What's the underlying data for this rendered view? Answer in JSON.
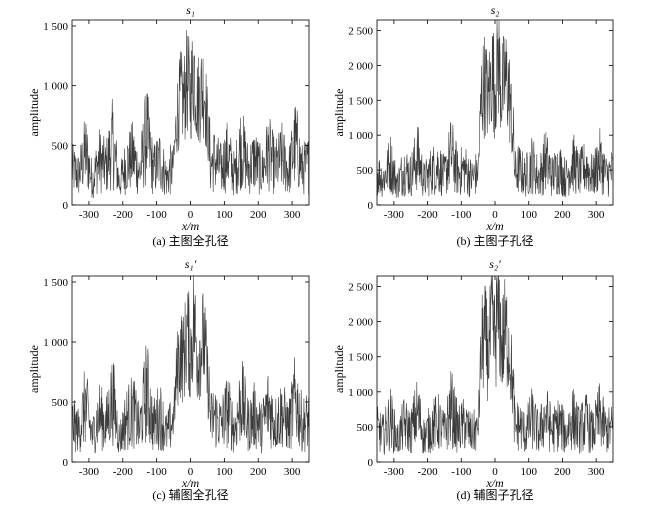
{
  "chart_data": [
    {
      "type": "line",
      "panel": "a",
      "title": "s₁",
      "caption": "(a) 主图全孔径",
      "xlabel": "x/m",
      "ylabel": "amplitude",
      "xlim": [
        -350,
        350
      ],
      "ylim": [
        0,
        1550
      ],
      "xticks": [
        -300,
        -200,
        -100,
        0,
        100,
        200,
        300
      ],
      "yticks": [
        0,
        500,
        1000,
        1500
      ],
      "ytick_labels": [
        "0",
        "500",
        "1 000",
        "1 500"
      ],
      "grid": false,
      "series": [
        {
          "x": [
            -350,
            -330,
            -310,
            -290,
            -270,
            -250,
            -230,
            -210,
            -190,
            -170,
            -150,
            -130,
            -110,
            -90,
            -70,
            -50,
            -40,
            -30,
            -20,
            -10,
            0,
            10,
            20,
            30,
            40,
            50,
            60,
            70,
            90,
            110,
            130,
            150,
            170,
            190,
            210,
            230,
            250,
            270,
            290,
            310,
            330,
            350
          ],
          "y": [
            300,
            250,
            450,
            200,
            380,
            310,
            520,
            180,
            340,
            410,
            260,
            600,
            290,
            380,
            220,
            350,
            740,
            900,
            880,
            1050,
            920,
            1150,
            880,
            940,
            1000,
            680,
            330,
            380,
            300,
            420,
            250,
            510,
            300,
            380,
            270,
            450,
            310,
            400,
            280,
            520,
            300,
            340
          ]
        }
      ]
    },
    {
      "type": "line",
      "panel": "b",
      "title": "s₂",
      "caption": "(b) 主图子孔径",
      "xlabel": "x/m",
      "ylabel": "amplitude",
      "xlim": [
        -350,
        350
      ],
      "ylim": [
        0,
        2650
      ],
      "xticks": [
        -300,
        -200,
        -100,
        0,
        100,
        200,
        300
      ],
      "yticks": [
        0,
        500,
        1000,
        1500,
        2000,
        2500
      ],
      "ytick_labels": [
        "0",
        "500",
        "1 000",
        "1 500",
        "2 000",
        "2 500"
      ],
      "grid": false,
      "series": [
        {
          "x": [
            -350,
            -330,
            -310,
            -290,
            -270,
            -250,
            -230,
            -210,
            -190,
            -170,
            -150,
            -130,
            -110,
            -90,
            -70,
            -50,
            -40,
            -30,
            -20,
            -10,
            0,
            10,
            20,
            30,
            40,
            50,
            60,
            70,
            90,
            110,
            130,
            150,
            170,
            190,
            210,
            230,
            250,
            270,
            290,
            310,
            330,
            350
          ],
          "y": [
            450,
            380,
            600,
            300,
            520,
            420,
            700,
            350,
            480,
            560,
            400,
            750,
            450,
            520,
            380,
            480,
            1600,
            1750,
            1500,
            1900,
            1700,
            2100,
            1600,
            1800,
            1700,
            1200,
            450,
            520,
            400,
            600,
            380,
            650,
            420,
            540,
            380,
            620,
            440,
            560,
            400,
            640,
            420,
            480
          ]
        }
      ]
    },
    {
      "type": "line",
      "panel": "c",
      "title": "s₁′",
      "caption": "(c) 辅图全孔径",
      "xlabel": "x/m",
      "ylabel": "amplitude",
      "xlim": [
        -350,
        350
      ],
      "ylim": [
        0,
        1550
      ],
      "xticks": [
        -300,
        -200,
        -100,
        0,
        100,
        200,
        300
      ],
      "yticks": [
        0,
        500,
        1000,
        1500
      ],
      "ytick_labels": [
        "0",
        "500",
        "1 000",
        "1 500"
      ],
      "grid": false,
      "series": [
        {
          "x": [
            -350,
            -330,
            -310,
            -290,
            -270,
            -250,
            -230,
            -210,
            -190,
            -170,
            -150,
            -130,
            -110,
            -90,
            -70,
            -50,
            -40,
            -30,
            -20,
            -10,
            0,
            10,
            20,
            30,
            40,
            50,
            60,
            70,
            90,
            110,
            130,
            150,
            170,
            190,
            210,
            230,
            250,
            270,
            290,
            310,
            330,
            350
          ],
          "y": [
            320,
            260,
            480,
            210,
            400,
            300,
            540,
            190,
            360,
            430,
            270,
            620,
            300,
            400,
            230,
            360,
            760,
            920,
            860,
            1080,
            900,
            1200,
            860,
            960,
            1020,
            700,
            340,
            390,
            310,
            440,
            260,
            530,
            310,
            390,
            280,
            470,
            320,
            410,
            290,
            540,
            310,
            350
          ]
        }
      ]
    },
    {
      "type": "line",
      "panel": "d",
      "title": "s₂′",
      "caption": "(d) 辅图子孔径",
      "xlabel": "x/m",
      "ylabel": "amplitude",
      "xlim": [
        -350,
        350
      ],
      "ylim": [
        0,
        2650
      ],
      "xticks": [
        -300,
        -200,
        -100,
        0,
        100,
        200,
        300
      ],
      "yticks": [
        0,
        500,
        1000,
        1500,
        2000,
        2500
      ],
      "ytick_labels": [
        "0",
        "500",
        "1 000",
        "1 500",
        "2 000",
        "2 500"
      ],
      "grid": false,
      "series": [
        {
          "x": [
            -350,
            -330,
            -310,
            -290,
            -270,
            -250,
            -230,
            -210,
            -190,
            -170,
            -150,
            -130,
            -110,
            -90,
            -70,
            -50,
            -40,
            -30,
            -20,
            -10,
            0,
            10,
            20,
            30,
            40,
            50,
            60,
            70,
            90,
            110,
            130,
            150,
            170,
            190,
            210,
            230,
            250,
            270,
            290,
            310,
            330,
            350
          ],
          "y": [
            460,
            390,
            620,
            310,
            540,
            430,
            720,
            360,
            490,
            580,
            410,
            780,
            460,
            540,
            390,
            490,
            1650,
            1780,
            1520,
            1950,
            1720,
            2200,
            1650,
            1850,
            1740,
            1250,
            460,
            540,
            410,
            620,
            390,
            670,
            430,
            560,
            390,
            640,
            450,
            580,
            410,
            660,
            430,
            490
          ]
        }
      ]
    }
  ]
}
